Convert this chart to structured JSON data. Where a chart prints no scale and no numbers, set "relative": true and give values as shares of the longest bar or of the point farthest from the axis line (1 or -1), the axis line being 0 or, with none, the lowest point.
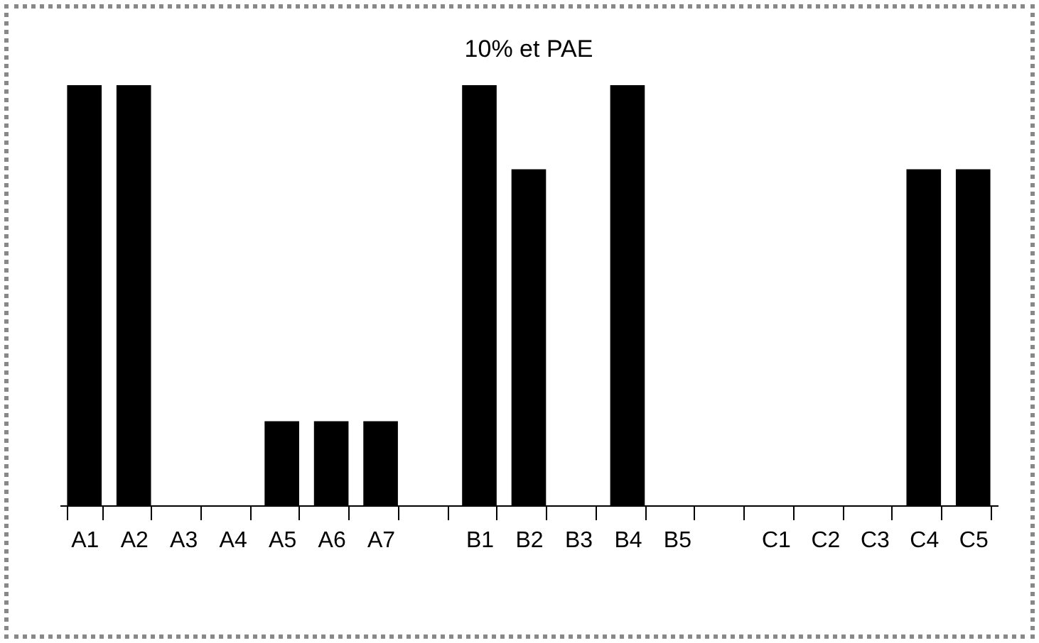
{
  "chart_data": {
    "type": "bar",
    "title": "10% et PAE",
    "relative": true,
    "color": "#000000",
    "categories": [
      "A1",
      "A2",
      "A3",
      "A4",
      "A5",
      "A6",
      "A7",
      null,
      "B1",
      "B2",
      "B3",
      "B4",
      "B5",
      null,
      "C1",
      "C2",
      "C3",
      "C4",
      "C5"
    ],
    "values": [
      1,
      1,
      0,
      0,
      0.2,
      0.2,
      0.2,
      0,
      1,
      0.8,
      0,
      1,
      0,
      0,
      0,
      0,
      0,
      0.8,
      0.8
    ],
    "grid": false
  }
}
